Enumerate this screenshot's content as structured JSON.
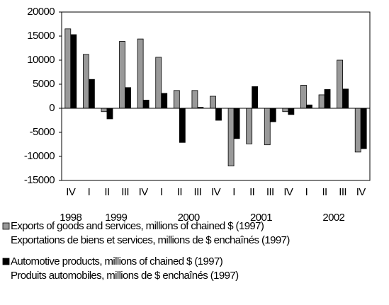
{
  "chart_data": {
    "type": "bar",
    "categories": [
      "IV",
      "I",
      "II",
      "III",
      "IV",
      "I",
      "II",
      "III",
      "IV",
      "I",
      "II",
      "III",
      "IV",
      "I",
      "II",
      "III",
      "IV"
    ],
    "years": [
      "1998",
      "1999",
      null,
      null,
      null,
      "2000",
      null,
      null,
      null,
      "2001",
      null,
      null,
      null,
      "2002",
      null,
      null,
      null
    ],
    "series": [
      {
        "name": "Exports of goods and services, millions of chained $ (1997)",
        "name_fr": "Exportations de biens et services, millions de $ enchaînés (1997)",
        "color": "#999999",
        "values": [
          16500,
          11200,
          -700,
          13900,
          14400,
          10600,
          3700,
          3700,
          2500,
          -12000,
          -7400,
          -7600,
          -700,
          4800,
          2800,
          10000,
          -9100
        ]
      },
      {
        "name": "Automotive products, millions of chained $ (1997)",
        "name_fr": "Produits automobiles, millions de $ enchaînés (1997)",
        "color": "#000000",
        "values": [
          15300,
          6000,
          -2200,
          4300,
          1700,
          3100,
          -7100,
          200,
          -2500,
          -6300,
          4500,
          -2800,
          -1300,
          700,
          3900,
          4000,
          -8400
        ]
      }
    ],
    "ylim": [
      -15000,
      20000
    ],
    "yticks": [
      -15000,
      -10000,
      -5000,
      0,
      5000,
      10000,
      15000,
      20000
    ],
    "grid": false,
    "legend": "bottom"
  }
}
